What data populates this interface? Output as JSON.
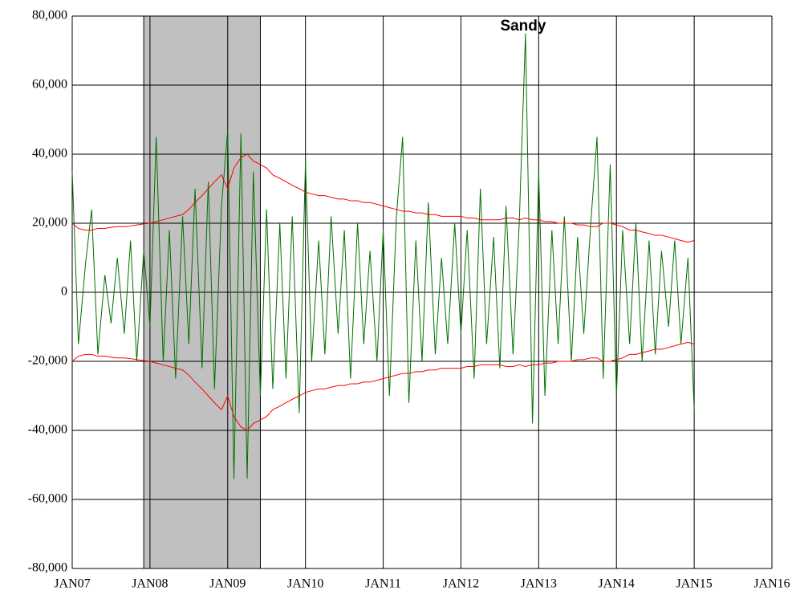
{
  "chart_data": {
    "type": "line",
    "xlim": [
      2007,
      2016
    ],
    "xticks": [
      {
        "value": 2007,
        "label": "JAN07"
      },
      {
        "value": 2008,
        "label": "JAN08"
      },
      {
        "value": 2009,
        "label": "JAN09"
      },
      {
        "value": 2010,
        "label": "JAN10"
      },
      {
        "value": 2011,
        "label": "JAN11"
      },
      {
        "value": 2012,
        "label": "JAN12"
      },
      {
        "value": 2013,
        "label": "JAN13"
      },
      {
        "value": 2014,
        "label": "JAN14"
      },
      {
        "value": 2015,
        "label": "JAN15"
      },
      {
        "value": 2016,
        "label": "JAN16"
      }
    ],
    "ylim": [
      -80000,
      80000
    ],
    "yticks": [
      {
        "value": -80000,
        "label": "-80,000"
      },
      {
        "value": -60000,
        "label": "-60,000"
      },
      {
        "value": -40000,
        "label": "-40,000"
      },
      {
        "value": -20000,
        "label": "-20,000"
      },
      0,
      {
        "value": 20000,
        "label": "20,000"
      },
      {
        "value": 40000,
        "label": "40,000"
      },
      {
        "value": 60000,
        "label": "60,000"
      },
      {
        "value": 80000,
        "label": "80,000"
      }
    ],
    "grid": true,
    "shaded_x": [
      2007.92,
      2009.42
    ],
    "shade_color": "#c0c0c0",
    "annotations": [
      {
        "text": "Sandy",
        "x": 2012.8,
        "y": 77000
      }
    ],
    "x": [
      2007,
      2007.08,
      2007.17,
      2007.25,
      2007.33,
      2007.42,
      2007.5,
      2007.58,
      2007.67,
      2007.75,
      2007.83,
      2007.92,
      2008,
      2008.08,
      2008.17,
      2008.25,
      2008.33,
      2008.42,
      2008.5,
      2008.58,
      2008.67,
      2008.75,
      2008.83,
      2008.92,
      2009,
      2009.08,
      2009.17,
      2009.25,
      2009.33,
      2009.42,
      2009.5,
      2009.58,
      2009.67,
      2009.75,
      2009.83,
      2009.92,
      2010,
      2010.08,
      2010.17,
      2010.25,
      2010.33,
      2010.42,
      2010.5,
      2010.58,
      2010.67,
      2010.75,
      2010.83,
      2010.92,
      2011,
      2011.08,
      2011.17,
      2011.25,
      2011.33,
      2011.42,
      2011.5,
      2011.58,
      2011.67,
      2011.75,
      2011.83,
      2011.92,
      2012,
      2012.08,
      2012.17,
      2012.25,
      2012.33,
      2012.42,
      2012.5,
      2012.58,
      2012.67,
      2012.75,
      2012.83,
      2012.92,
      2013,
      2013.08,
      2013.17,
      2013.25,
      2013.33,
      2013.42,
      2013.5,
      2013.58,
      2013.67,
      2013.75,
      2013.83,
      2013.92,
      2014,
      2014.08,
      2014.17,
      2014.25,
      2014.33,
      2014.42,
      2014.5,
      2014.58,
      2014.67,
      2014.75,
      2014.83,
      2014.92,
      2015
    ],
    "series": [
      {
        "color": "#007000",
        "values": [
          35000,
          -15000,
          8000,
          24000,
          -18000,
          5000,
          -9000,
          10000,
          -12000,
          15000,
          -20000,
          12000,
          -10000,
          45000,
          -20000,
          18000,
          -25000,
          22000,
          -15000,
          30000,
          -22000,
          32000,
          -28000,
          25000,
          47000,
          -54000,
          46000,
          -54000,
          35000,
          -30000,
          24000,
          -28000,
          20000,
          -25000,
          22000,
          -35000,
          38000,
          -20000,
          15000,
          -18000,
          22000,
          -12000,
          18000,
          -25000,
          20000,
          -15000,
          12000,
          -20000,
          18000,
          -30000,
          22000,
          45000,
          -32000,
          15000,
          -20000,
          26000,
          -18000,
          10000,
          -15000,
          20000,
          -12000,
          18000,
          -25000,
          30000,
          -15000,
          16000,
          -22000,
          25000,
          -18000,
          20000,
          75000,
          -38000,
          35000,
          -30000,
          18000,
          -15000,
          22000,
          -20000,
          16000,
          -12000,
          20000,
          45000,
          -25000,
          37000,
          -30000,
          18000,
          -15000,
          20000,
          -20000,
          15000,
          -18000,
          12000,
          -10000,
          15000,
          -15000,
          10000,
          -34000
        ]
      },
      {
        "color": "#ff0000",
        "values": [
          20000,
          18500,
          18000,
          18000,
          18500,
          18500,
          18800,
          19000,
          19000,
          19200,
          19500,
          19800,
          20000,
          20500,
          21000,
          21500,
          22000,
          22500,
          24000,
          26000,
          28000,
          30000,
          32000,
          34000,
          30000,
          36000,
          39000,
          40000,
          38000,
          37000,
          36000,
          34000,
          33000,
          32000,
          31000,
          30000,
          29000,
          28500,
          28000,
          28000,
          27500,
          27000,
          27000,
          26500,
          26500,
          26000,
          26000,
          25500,
          25000,
          24500,
          24000,
          23500,
          23500,
          23000,
          23000,
          22500,
          22500,
          22000,
          22000,
          22000,
          22000,
          21500,
          21500,
          21000,
          21000,
          21000,
          21000,
          21500,
          21500,
          21000,
          21500,
          21000,
          21000,
          20500,
          20500,
          20000,
          20000,
          20000,
          19500,
          19500,
          19000,
          19000,
          20000,
          20000,
          19500,
          19000,
          18000,
          18000,
          17500,
          17000,
          16500,
          16500,
          16000,
          15500,
          15000,
          14500,
          15000
        ]
      },
      {
        "color": "#ff0000",
        "values": [
          -20000,
          -18500,
          -18000,
          -18000,
          -18500,
          -18500,
          -18800,
          -19000,
          -19000,
          -19200,
          -19500,
          -19800,
          -20000,
          -20500,
          -21000,
          -21500,
          -22000,
          -22500,
          -24000,
          -26000,
          -28000,
          -30000,
          -32000,
          -34000,
          -30000,
          -36000,
          -39000,
          -40000,
          -38000,
          -37000,
          -36000,
          -34000,
          -33000,
          -32000,
          -31000,
          -30000,
          -29000,
          -28500,
          -28000,
          -28000,
          -27500,
          -27000,
          -27000,
          -26500,
          -26500,
          -26000,
          -26000,
          -25500,
          -25000,
          -24500,
          -24000,
          -23500,
          -23500,
          -23000,
          -23000,
          -22500,
          -22500,
          -22000,
          -22000,
          -22000,
          -22000,
          -21500,
          -21500,
          -21000,
          -21000,
          -21000,
          -21000,
          -21500,
          -21500,
          -21000,
          -21500,
          -21000,
          -21000,
          -20500,
          -20500,
          -20000,
          -20000,
          -20000,
          -19500,
          -19500,
          -19000,
          -19000,
          -20000,
          -20000,
          -19500,
          -19000,
          -18000,
          -18000,
          -17500,
          -17000,
          -16500,
          -16500,
          -16000,
          -15500,
          -15000,
          -14500,
          -15000
        ]
      }
    ]
  }
}
